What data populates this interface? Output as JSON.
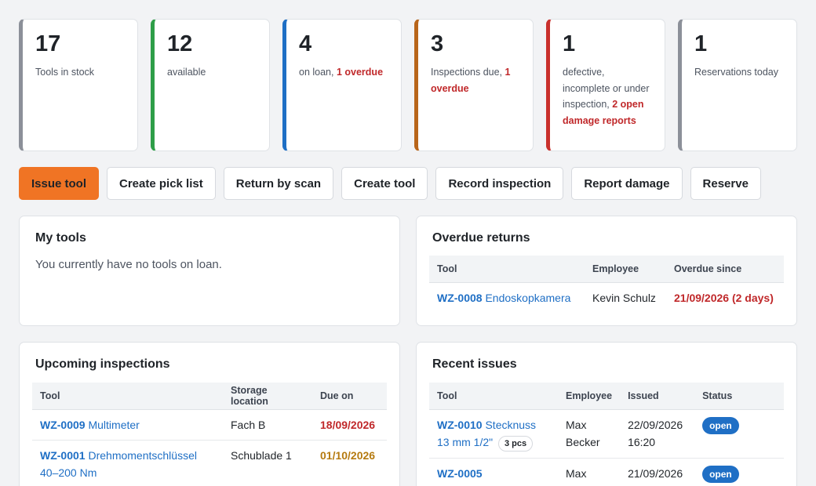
{
  "kpis": [
    {
      "value": "17",
      "label": "Tools in stock",
      "highlight": "",
      "color": "#8c9099"
    },
    {
      "value": "12",
      "label": "available",
      "highlight": "",
      "color": "#2e9e48"
    },
    {
      "value": "4",
      "label": "on loan, ",
      "highlight": "1 overdue",
      "color": "#1f6fc5"
    },
    {
      "value": "3",
      "label": "Inspections due, ",
      "highlight": "1 overdue",
      "color": "#b8651a"
    },
    {
      "value": "1",
      "label": "defective, incomplete or under inspection, ",
      "highlight": "2 open damage reports",
      "color": "#c9302c"
    },
    {
      "value": "1",
      "label": "Reservations today",
      "highlight": "",
      "color": "#8c9099"
    }
  ],
  "actions": {
    "issue_tool": "Issue tool",
    "create_pick_list": "Create pick list",
    "return_by_scan": "Return by scan",
    "create_tool": "Create tool",
    "record_inspection": "Record inspection",
    "report_damage": "Report damage",
    "reserve": "Reserve"
  },
  "my_tools": {
    "title": "My tools",
    "empty_text": "You currently have no tools on loan."
  },
  "overdue_returns": {
    "title": "Overdue returns",
    "columns": {
      "tool": "Tool",
      "employee": "Employee",
      "overdue_since": "Overdue since"
    },
    "rows": [
      {
        "tool_id": "WZ-0008",
        "tool_name": "Endoskopkamera",
        "employee": "Kevin Schulz",
        "overdue_since": "21/09/2026 (2 days)"
      }
    ]
  },
  "upcoming_inspections": {
    "title": "Upcoming inspections",
    "columns": {
      "tool": "Tool",
      "storage_location": "Storage location",
      "due_on": "Due on"
    },
    "rows": [
      {
        "tool_id": "WZ-0009",
        "tool_name": "Multimeter",
        "storage_location": "Fach B",
        "due_on": "18/09/2026"
      },
      {
        "tool_id": "WZ-0001",
        "tool_name": "Drehmomentschlüssel 40–200 Nm",
        "storage_location": "Schublade 1",
        "due_on": "01/10/2026"
      }
    ]
  },
  "recent_issues": {
    "title": "Recent issues",
    "columns": {
      "tool": "Tool",
      "employee": "Employee",
      "issued": "Issued",
      "status": "Status"
    },
    "rows": [
      {
        "tool_id": "WZ-0010",
        "tool_name": "Stecknuss 13 mm 1/2\"",
        "quantity": "3 pcs",
        "employee": "Max Becker",
        "issued": "22/09/2026 16:20",
        "status": "open"
      },
      {
        "tool_id": "WZ-0005",
        "tool_name": "",
        "quantity": "",
        "employee": "Max",
        "issued": "21/09/2026",
        "status": "open"
      }
    ]
  }
}
